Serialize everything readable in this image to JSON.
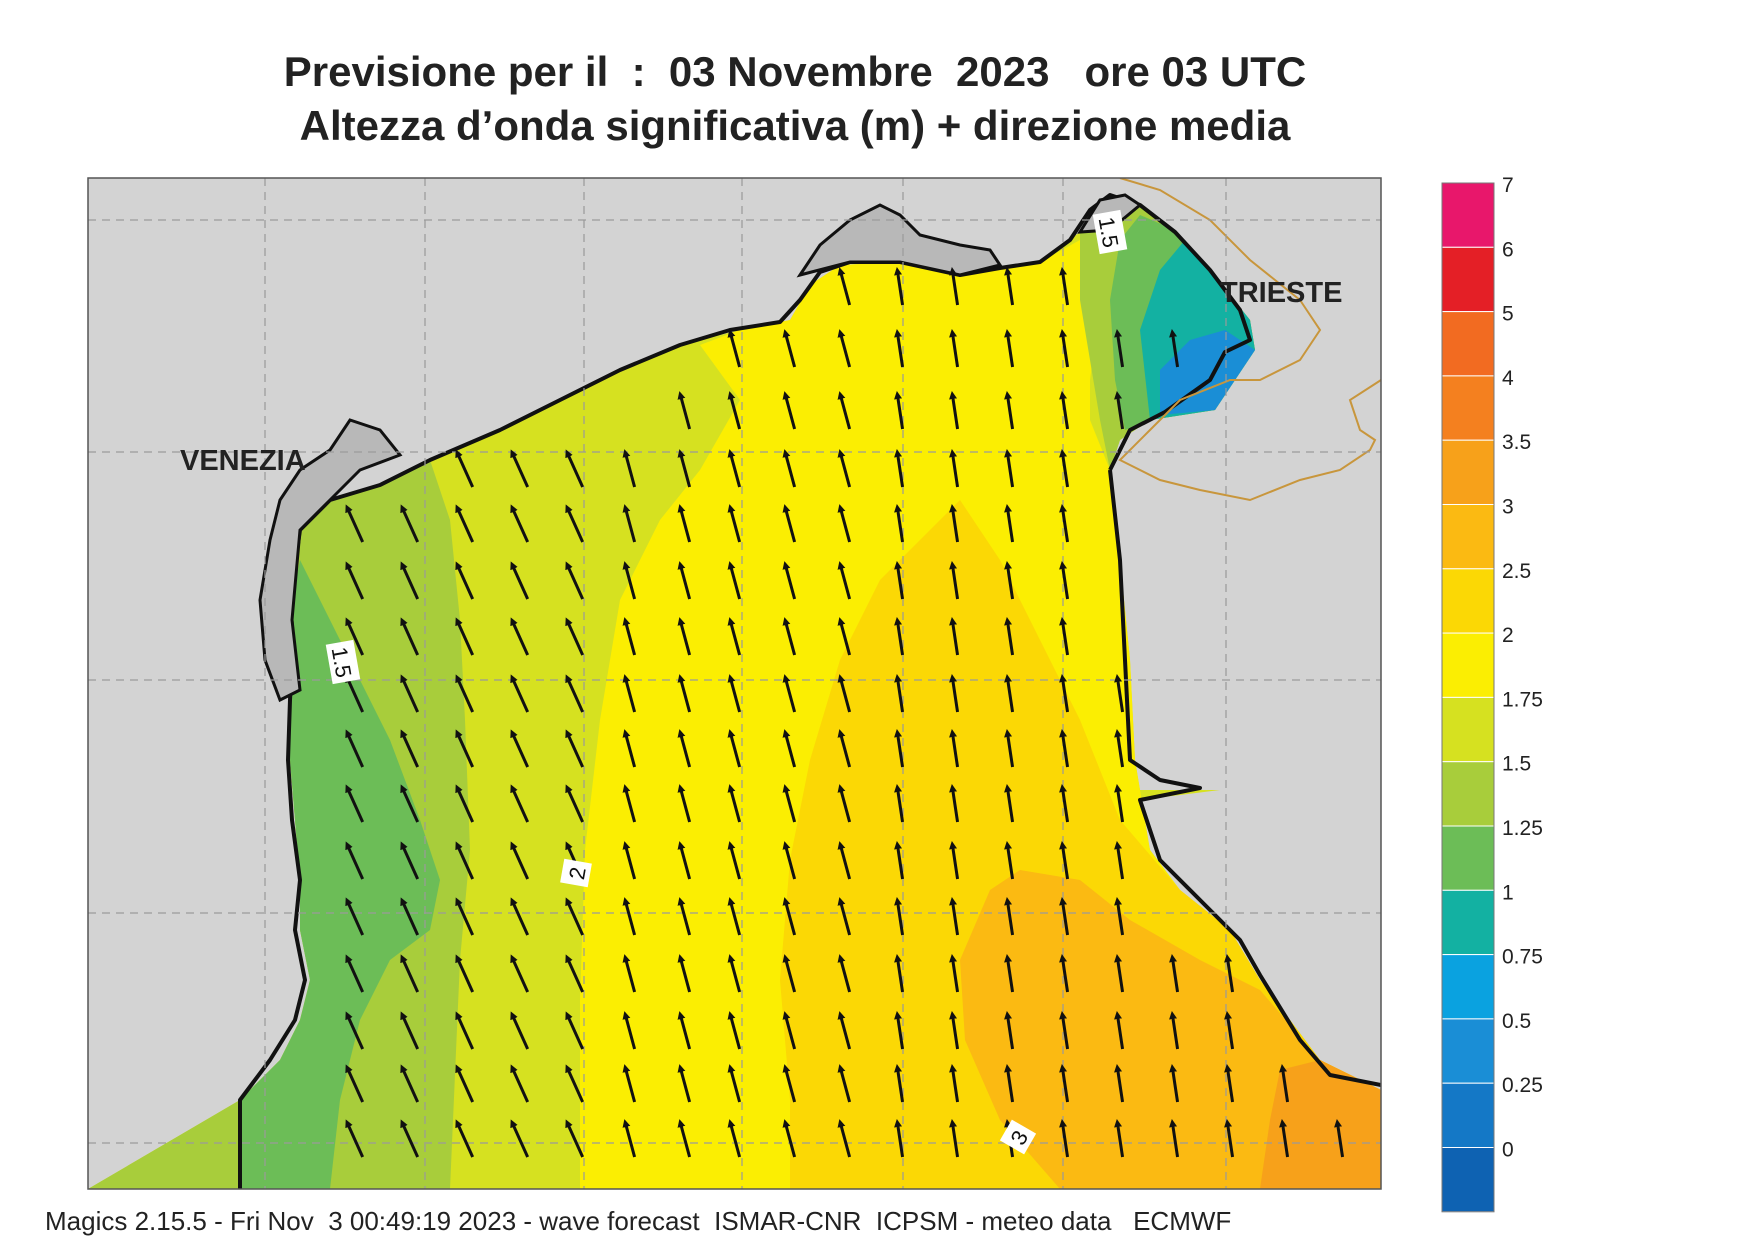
{
  "title": {
    "line1": "Previsione per il  :  03 Novembre  2023   ore 03 UTC",
    "line2": "Altezza d’onda significativa (m) + direzione media"
  },
  "labels": {
    "venezia": "VENEZIA",
    "trieste": "TRIESTE",
    "contour_1_5_a": "1.5",
    "contour_1_5_b": "1.5",
    "contour_2": "2",
    "contour_3": "3"
  },
  "legend": {
    "levels": [
      "7",
      "6",
      "5",
      "4",
      "3.5",
      "3",
      "2.5",
      "2",
      "1.75",
      "1.5",
      "1.25",
      "1",
      "0.75",
      "0.5",
      "0.25",
      "0"
    ],
    "colors": [
      "#e8176b",
      "#e41f26",
      "#f26b21",
      "#f4801f",
      "#f7a11a",
      "#fbba12",
      "#fbd805",
      "#fbee02",
      "#d6e120",
      "#a8cd3b",
      "#6cbd57",
      "#13b1a2",
      "#0aa2e0",
      "#1a8ed6",
      "#1478c6",
      "#0e62b2"
    ]
  },
  "arrow_direction": "north-northwest",
  "footer": "Magics 2.15.5 - Fri Nov  3 00:49:19 2023 - wave forecast  ISMAR-CNR  ICPSM - meteo data   ECMWF"
}
